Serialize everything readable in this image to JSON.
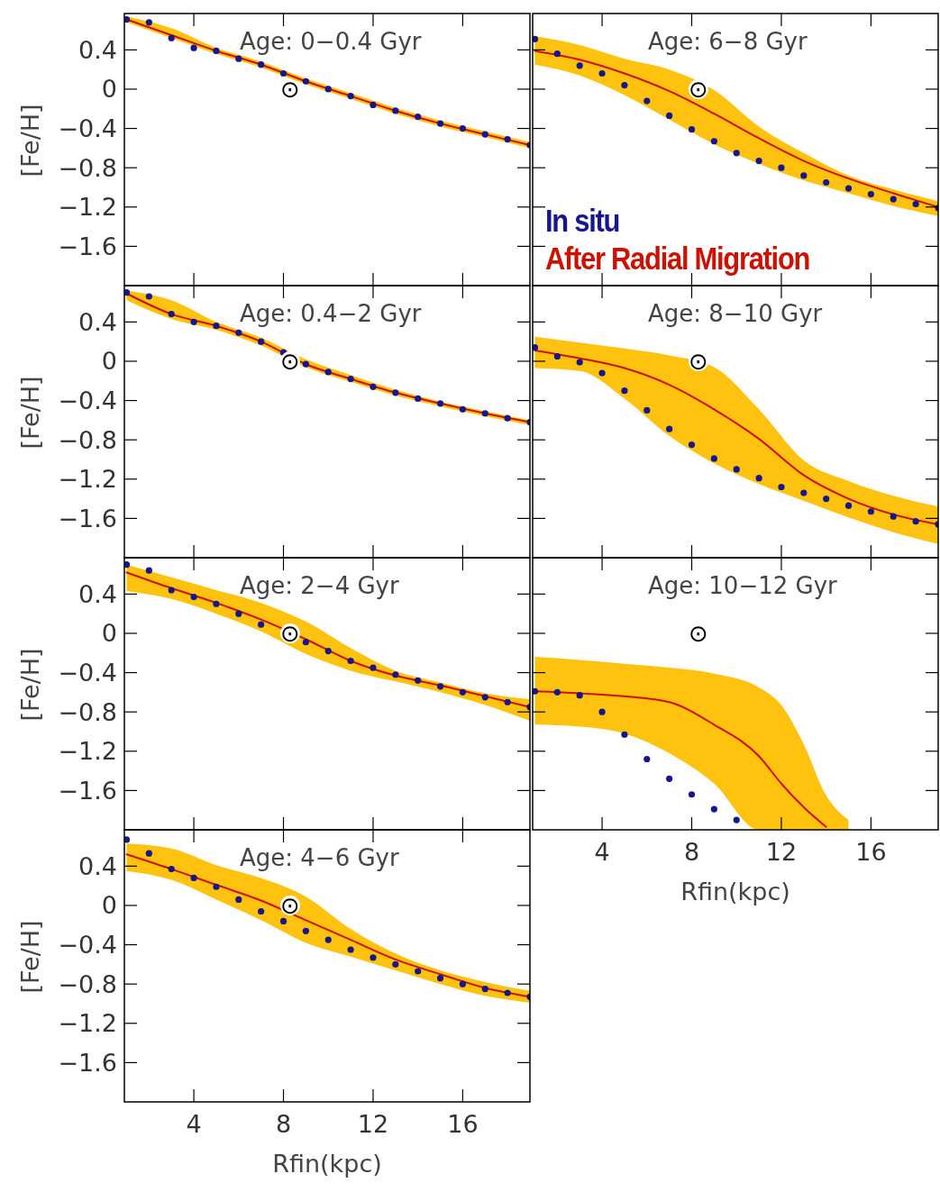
{
  "chart_data": [
    {
      "type": "line",
      "title": "Age: 0−0.4 Gyr",
      "ylabel": "[Fe/H]",
      "xlim": [
        0.9,
        19
      ],
      "ylim": [
        -2,
        0.77
      ],
      "xticks": [
        4,
        8,
        12,
        16
      ],
      "yticks": [
        0.4,
        0,
        {
          "value": -0.4,
          "label": "−0.4"
        },
        {
          "value": -0.8,
          "label": "−0.8"
        },
        {
          "value": -1.2,
          "label": "−1.2"
        },
        {
          "value": -1.6,
          "label": "−1.6"
        }
      ],
      "tick_labels": "y",
      "annotations": [
        "⊙"
      ],
      "series": [
        {
          "type": "scatter",
          "marker": "circle",
          "color": "#000000",
          "x": [
            8.3
          ],
          "values": [
            0
          ]
        },
        {
          "type": "line",
          "color": "#cc1100",
          "x": [
            1,
            3,
            5,
            7,
            9,
            11,
            13,
            15,
            17,
            19
          ],
          "values": [
            0.71,
            0.55,
            0.39,
            0.25,
            0.08,
            -0.07,
            -0.22,
            -0.35,
            -0.46,
            -0.57
          ],
          "lower": [
            0.68,
            0.52,
            0.36,
            0.22,
            0.05,
            -0.1,
            -0.25,
            -0.38,
            -0.49,
            -0.6
          ],
          "upper": [
            0.74,
            0.62,
            0.42,
            0.28,
            0.11,
            -0.04,
            -0.19,
            -0.32,
            -0.43,
            -0.54
          ]
        },
        {
          "type": "scatter",
          "marker": "circle",
          "color": "#16168f",
          "x": [
            1,
            2,
            3,
            4,
            5,
            6,
            7,
            8,
            9,
            10,
            11,
            12,
            13,
            14,
            15,
            16,
            17,
            18,
            19
          ],
          "values": [
            0.71,
            0.68,
            0.52,
            0.42,
            0.39,
            0.31,
            0.25,
            0.16,
            0.08,
            0,
            -0.07,
            -0.16,
            -0.22,
            -0.28,
            -0.35,
            -0.4,
            -0.46,
            -0.51,
            -0.57
          ]
        }
      ]
    },
    {
      "type": "line",
      "title": "Age: 6−8 Gyr",
      "xlim": [
        0.9,
        19
      ],
      "ylim": [
        -2,
        0.77
      ],
      "xticks": [
        4,
        8,
        12,
        16
      ],
      "yticks": [
        0.4,
        0,
        -0.4,
        -0.8,
        -1.2,
        -1.6
      ],
      "tick_labels": false,
      "legend": "bottom left",
      "annotations": [
        "⊙"
      ],
      "series": [
        {
          "type": "scatter",
          "marker": "circle",
          "color": "#000000",
          "x": [
            8.3
          ],
          "values": [
            0
          ]
        },
        {
          "type": "scatter",
          "name": "In situ",
          "marker": "circle",
          "color": "#16168f",
          "x": [
            1,
            2,
            3,
            4,
            5,
            6,
            7,
            8,
            9,
            10,
            11,
            12,
            13,
            14,
            15,
            16,
            17,
            18,
            19
          ],
          "values": [
            0.51,
            0.36,
            0.24,
            0.16,
            0.04,
            -0.12,
            -0.27,
            -0.41,
            -0.53,
            -0.65,
            -0.73,
            -0.8,
            -0.88,
            -0.95,
            -1.01,
            -1.07,
            -1.12,
            -1.17,
            -1.21
          ]
        },
        {
          "type": "line",
          "name": "After Radial Migration",
          "color": "#cc1100",
          "x": [
            1,
            3,
            5,
            7,
            9,
            11,
            13,
            15,
            17,
            19
          ],
          "values": [
            0.39,
            0.3,
            0.16,
            -0.02,
            -0.25,
            -0.5,
            -0.73,
            -0.91,
            -1.06,
            -1.2
          ],
          "lower": [
            0.25,
            0.14,
            -0.06,
            -0.31,
            -0.56,
            -0.76,
            -0.93,
            -1.06,
            -1.19,
            -1.29
          ],
          "upper": [
            0.54,
            0.45,
            0.31,
            0.2,
            -0.01,
            -0.38,
            -0.65,
            -0.88,
            -1.02,
            -1.14
          ]
        }
      ]
    },
    {
      "type": "line",
      "title": "Age: 0.4−2 Gyr",
      "ylabel": "[Fe/H]",
      "xlim": [
        0.9,
        19
      ],
      "ylim": [
        -2,
        0.77
      ],
      "xticks": [
        4,
        8,
        12,
        16
      ],
      "yticks": [
        0.4,
        0,
        {
          "value": -0.4,
          "label": "−0.4"
        },
        {
          "value": -0.8,
          "label": "−0.8"
        },
        {
          "value": -1.2,
          "label": "−1.2"
        },
        {
          "value": -1.6,
          "label": "−1.6"
        }
      ],
      "tick_labels": "y",
      "annotations": [
        "⊙"
      ],
      "series": [
        {
          "type": "scatter",
          "marker": "circle",
          "color": "#000000",
          "x": [
            8.3
          ],
          "values": [
            0
          ]
        },
        {
          "type": "line",
          "color": "#cc1100",
          "x": [
            1,
            3,
            5,
            7,
            9,
            11,
            13,
            15,
            17,
            19
          ],
          "values": [
            0.69,
            0.48,
            0.36,
            0.2,
            -0.03,
            -0.18,
            -0.32,
            -0.43,
            -0.53,
            -0.62
          ],
          "lower": [
            0.62,
            0.43,
            0.32,
            0.16,
            -0.06,
            -0.21,
            -0.35,
            -0.46,
            -0.56,
            -0.65
          ],
          "upper": [
            0.72,
            0.62,
            0.4,
            0.24,
            0.02,
            -0.14,
            -0.29,
            -0.41,
            -0.51,
            -0.6
          ]
        },
        {
          "type": "scatter",
          "marker": "circle",
          "color": "#16168f",
          "x": [
            1,
            2,
            3,
            4,
            5,
            6,
            7,
            8,
            9,
            10,
            11,
            12,
            13,
            14,
            15,
            16,
            17,
            18,
            19
          ],
          "values": [
            0.7,
            0.66,
            0.48,
            0.4,
            0.36,
            0.29,
            0.2,
            0.09,
            -0.03,
            -0.11,
            -0.18,
            -0.26,
            -0.32,
            -0.38,
            -0.43,
            -0.49,
            -0.53,
            -0.58,
            -0.62
          ]
        }
      ]
    },
    {
      "type": "line",
      "title": "Age: 8−10 Gyr",
      "xlim": [
        0.9,
        19
      ],
      "ylim": [
        -2,
        0.77
      ],
      "xticks": [
        4,
        8,
        12,
        16
      ],
      "yticks": [
        0.4,
        0,
        -0.4,
        -0.8,
        -1.2,
        -1.6
      ],
      "tick_labels": false,
      "annotations": [
        "⊙"
      ],
      "series": [
        {
          "type": "scatter",
          "marker": "circle",
          "color": "#000000",
          "x": [
            8.3
          ],
          "values": [
            0
          ]
        },
        {
          "type": "line",
          "color": "#cc1100",
          "x": [
            1,
            3,
            5,
            7,
            9,
            11,
            13,
            15,
            17,
            19
          ],
          "values": [
            0.11,
            0.03,
            -0.07,
            -0.24,
            -0.49,
            -0.79,
            -1.16,
            -1.4,
            -1.56,
            -1.66
          ],
          "lower": [
            -0.07,
            -0.1,
            -0.38,
            -0.76,
            -1.04,
            -1.25,
            -1.42,
            -1.59,
            -1.74,
            -1.86
          ],
          "upper": [
            0.25,
            0.19,
            0.13,
            0.06,
            -0.06,
            -0.49,
            -1.01,
            -1.22,
            -1.37,
            -1.48
          ]
        },
        {
          "type": "scatter",
          "marker": "circle",
          "color": "#16168f",
          "x": [
            1,
            2,
            3,
            4,
            5,
            6,
            7,
            8,
            9,
            10,
            11,
            12,
            13,
            14,
            15,
            16,
            17,
            18,
            19
          ],
          "values": [
            0.14,
            0.05,
            -0.01,
            -0.12,
            -0.3,
            -0.5,
            -0.69,
            -0.85,
            -0.99,
            -1.1,
            -1.19,
            -1.28,
            -1.34,
            -1.4,
            -1.47,
            -1.53,
            -1.58,
            -1.63,
            -1.66
          ]
        }
      ]
    },
    {
      "type": "line",
      "title": "Age: 2−4 Gyr",
      "ylabel": "[Fe/H]",
      "xlim": [
        0.9,
        19
      ],
      "ylim": [
        -2,
        0.77
      ],
      "xticks": [
        4,
        8,
        12,
        16
      ],
      "yticks": [
        0.4,
        0,
        {
          "value": -0.4,
          "label": "−0.4"
        },
        {
          "value": -0.8,
          "label": "−0.8"
        },
        {
          "value": -1.2,
          "label": "−1.2"
        },
        {
          "value": -1.6,
          "label": "−1.6"
        }
      ],
      "tick_labels": "y",
      "annotations": [
        "⊙"
      ],
      "series": [
        {
          "type": "scatter",
          "marker": "circle",
          "color": "#000000",
          "x": [
            8.3
          ],
          "values": [
            0
          ]
        },
        {
          "type": "line",
          "color": "#cc1100",
          "x": [
            1,
            3,
            5,
            7,
            9,
            11,
            13,
            15,
            17,
            19
          ],
          "values": [
            0.62,
            0.46,
            0.31,
            0.14,
            -0.06,
            -0.28,
            -0.43,
            -0.53,
            -0.64,
            -0.75
          ],
          "lower": [
            0.43,
            0.35,
            0.2,
            0.02,
            -0.21,
            -0.38,
            -0.49,
            -0.6,
            -0.73,
            -0.89
          ],
          "upper": [
            0.7,
            0.57,
            0.44,
            0.31,
            0.12,
            -0.15,
            -0.38,
            -0.5,
            -0.61,
            -0.67
          ]
        },
        {
          "type": "scatter",
          "marker": "circle",
          "color": "#16168f",
          "x": [
            1,
            2,
            3,
            4,
            5,
            6,
            7,
            8,
            9,
            10,
            11,
            12,
            13,
            14,
            15,
            16,
            17,
            18,
            19
          ],
          "values": [
            0.7,
            0.64,
            0.44,
            0.37,
            0.3,
            0.2,
            0.09,
            null,
            -0.09,
            -0.18,
            -0.28,
            -0.35,
            -0.42,
            -0.48,
            -0.54,
            -0.6,
            -0.65,
            -0.7,
            -0.75
          ]
        }
      ]
    },
    {
      "type": "line",
      "title": "Age: 10−12 Gyr",
      "xlabel": "Rfin(kpc)",
      "xlim": [
        0.9,
        19
      ],
      "ylim": [
        -2,
        0.77
      ],
      "xticks": [
        4,
        8,
        12,
        16
      ],
      "yticks": [
        0.4,
        0,
        -0.4,
        -0.8,
        -1.2,
        -1.6
      ],
      "tick_labels": "x",
      "annotations": [
        "⊙"
      ],
      "series": [
        {
          "type": "scatter",
          "marker": "circle",
          "color": "#000000",
          "x": [
            8.3
          ],
          "values": [
            0
          ]
        },
        {
          "type": "line",
          "color": "#cc1100",
          "x": [
            1,
            3,
            5,
            7,
            9,
            11,
            12,
            13,
            14,
            15
          ],
          "values": [
            -0.59,
            -0.61,
            -0.64,
            -0.7,
            -0.93,
            -1.25,
            -1.53,
            -1.77,
            -1.97,
            null
          ],
          "lower": [
            -0.93,
            -0.95,
            -1.02,
            -1.22,
            -1.53,
            -2,
            -2,
            -2,
            -2,
            -2
          ],
          "upper": [
            -0.24,
            -0.27,
            -0.31,
            -0.35,
            -0.41,
            -0.55,
            -0.73,
            -1.13,
            -1.65,
            -1.9
          ]
        },
        {
          "type": "scatter",
          "marker": "circle",
          "color": "#16168f",
          "x": [
            1,
            2,
            3,
            4,
            5,
            6,
            7,
            8,
            9,
            10
          ],
          "values": [
            -0.59,
            -0.6,
            -0.63,
            -0.8,
            -1.03,
            -1.28,
            -1.48,
            -1.64,
            -1.79,
            -1.9
          ]
        }
      ]
    },
    {
      "type": "line",
      "title": "Age: 4−6 Gyr",
      "xlabel": "Rfin(kpc)",
      "ylabel": "[Fe/H]",
      "xlim": [
        0.9,
        19
      ],
      "ylim": [
        -2,
        0.77
      ],
      "xticks": [
        4,
        8,
        12,
        16
      ],
      "yticks": [
        0.4,
        0,
        {
          "value": -0.4,
          "label": "−0.4"
        },
        {
          "value": -0.8,
          "label": "−0.8"
        },
        {
          "value": -1.2,
          "label": "−1.2"
        },
        {
          "value": -1.6,
          "label": "−1.6"
        }
      ],
      "annotations": [
        "⊙"
      ],
      "series": [
        {
          "type": "scatter",
          "marker": "circle",
          "color": "#000000",
          "x": [
            8.3
          ],
          "values": [
            0
          ]
        },
        {
          "type": "line",
          "color": "#cc1100",
          "x": [
            1,
            3,
            5,
            7,
            9,
            11,
            13,
            15,
            17,
            19
          ],
          "values": [
            0.52,
            0.37,
            0.21,
            0.05,
            -0.15,
            -0.35,
            -0.55,
            -0.7,
            -0.84,
            -0.93
          ],
          "lower": [
            0.35,
            0.26,
            0.06,
            -0.15,
            -0.38,
            -0.52,
            -0.66,
            -0.8,
            -0.92,
            -0.99
          ],
          "upper": [
            0.63,
            0.58,
            0.41,
            0.28,
            0.09,
            -0.24,
            -0.49,
            -0.66,
            -0.78,
            -0.87
          ]
        },
        {
          "type": "scatter",
          "marker": "circle",
          "color": "#16168f",
          "x": [
            1,
            2,
            3,
            4,
            5,
            6,
            7,
            8,
            9,
            10,
            11,
            12,
            13,
            14,
            15,
            16,
            17,
            18,
            19
          ],
          "values": [
            0.67,
            0.53,
            0.37,
            0.28,
            0.19,
            0.06,
            -0.06,
            -0.16,
            -0.26,
            -0.35,
            -0.45,
            -0.53,
            -0.6,
            -0.67,
            -0.74,
            -0.8,
            -0.85,
            -0.89,
            -0.93
          ]
        }
      ]
    }
  ]
}
